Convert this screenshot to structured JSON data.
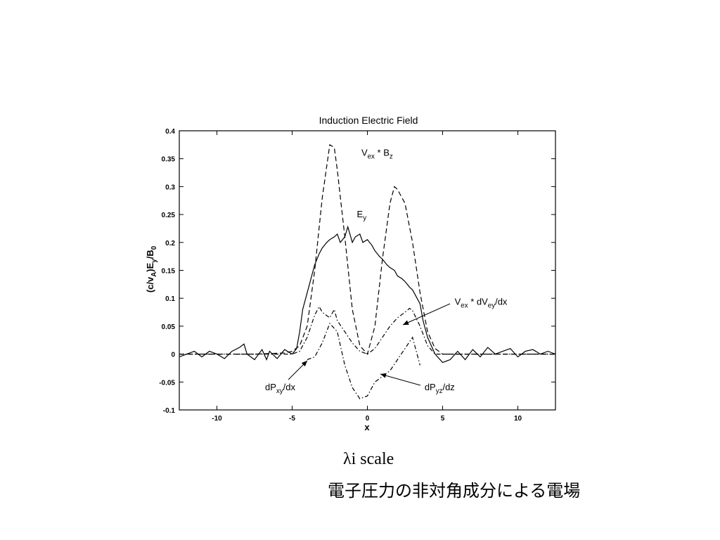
{
  "slide": {
    "caption_scale": "λi scale",
    "caption_jp": "電子圧力の非対角成分による電場"
  },
  "chart_data": {
    "type": "line",
    "title": "Induction Electric Field",
    "xlabel": "x",
    "ylabel": "(c/v_A)E_y/B_0",
    "xlim": [
      -12.5,
      12.5
    ],
    "ylim": [
      -0.1,
      0.4
    ],
    "xticks": [
      -10,
      -5,
      0,
      5,
      10
    ],
    "yticks": [
      -0.1,
      -0.05,
      0,
      0.05,
      0.1,
      0.15,
      0.2,
      0.25,
      0.3,
      0.35,
      0.4
    ],
    "grid": false,
    "series": [
      {
        "name": "E_y",
        "style": "solid",
        "x": [
          -12.5,
          -12.0,
          -11.5,
          -11.0,
          -10.5,
          -10.0,
          -9.5,
          -9.0,
          -8.5,
          -8.2,
          -8.0,
          -7.5,
          -7.0,
          -6.7,
          -6.5,
          -6.0,
          -5.5,
          -5.0,
          -4.7,
          -4.5,
          -4.3,
          -4.0,
          -3.7,
          -3.5,
          -3.2,
          -3.0,
          -2.7,
          -2.5,
          -2.2,
          -2.0,
          -1.8,
          -1.5,
          -1.3,
          -1.0,
          -0.8,
          -0.5,
          -0.3,
          0.0,
          0.3,
          0.5,
          0.8,
          1.0,
          1.3,
          1.5,
          1.8,
          2.0,
          2.3,
          2.5,
          2.8,
          3.0,
          3.2,
          3.5,
          3.7,
          4.0,
          4.3,
          4.5,
          5.0,
          5.5,
          6.0,
          6.5,
          7.0,
          7.5,
          8.0,
          8.5,
          9.0,
          9.5,
          10.0,
          10.5,
          11.0,
          11.5,
          12.0,
          12.5
        ],
        "y": [
          -0.005,
          0.0,
          0.005,
          -0.005,
          0.005,
          0.0,
          -0.008,
          0.005,
          0.012,
          0.018,
          0.0,
          -0.01,
          0.008,
          -0.01,
          0.005,
          -0.008,
          0.008,
          0.0,
          0.01,
          0.04,
          0.08,
          0.11,
          0.14,
          0.16,
          0.18,
          0.19,
          0.2,
          0.205,
          0.21,
          0.215,
          0.2,
          0.21,
          0.228,
          0.2,
          0.21,
          0.215,
          0.2,
          0.205,
          0.195,
          0.185,
          0.175,
          0.17,
          0.16,
          0.155,
          0.15,
          0.14,
          0.135,
          0.13,
          0.12,
          0.115,
          0.105,
          0.09,
          0.06,
          0.03,
          0.012,
          0.0,
          -0.015,
          -0.01,
          0.005,
          -0.01,
          0.008,
          -0.005,
          0.012,
          0.0,
          0.005,
          0.01,
          -0.005,
          0.005,
          0.008,
          0.0,
          0.005,
          0.0
        ]
      },
      {
        "name": "V_ex * B_z",
        "style": "dashed",
        "x": [
          -12.5,
          -10.0,
          -7.5,
          -5.5,
          -5.0,
          -4.5,
          -4.0,
          -3.5,
          -3.0,
          -2.5,
          -2.2,
          -2.0,
          -1.5,
          -1.0,
          -0.5,
          0.0,
          0.5,
          1.0,
          1.5,
          1.8,
          2.0,
          2.5,
          3.0,
          3.5,
          4.0,
          4.5,
          5.0,
          7.5,
          10.0,
          12.5
        ],
        "y": [
          0.0,
          0.0,
          0.0,
          0.002,
          0.005,
          0.015,
          0.05,
          0.15,
          0.28,
          0.375,
          0.37,
          0.33,
          0.21,
          0.08,
          0.015,
          0.0,
          0.05,
          0.17,
          0.27,
          0.3,
          0.295,
          0.27,
          0.2,
          0.11,
          0.04,
          0.01,
          0.0,
          0.0,
          0.0,
          0.0
        ]
      },
      {
        "name": "V_ex * dV_ey/dx",
        "style": "dashdot",
        "x": [
          -12.5,
          -10.0,
          -7.5,
          -5.0,
          -4.5,
          -4.0,
          -3.5,
          -3.2,
          -3.0,
          -2.5,
          -2.2,
          -2.0,
          -1.5,
          -1.0,
          -0.5,
          0.0,
          0.5,
          1.0,
          1.5,
          2.0,
          2.5,
          2.8,
          3.0,
          3.5,
          4.0,
          4.5,
          5.0,
          7.5,
          10.0,
          12.5
        ],
        "y": [
          0.0,
          0.0,
          0.0,
          0.0,
          0.005,
          0.03,
          0.07,
          0.085,
          0.075,
          0.065,
          0.08,
          0.06,
          0.04,
          0.02,
          0.005,
          0.0,
          0.01,
          0.03,
          0.05,
          0.065,
          0.075,
          0.082,
          0.078,
          0.05,
          0.015,
          0.0,
          0.0,
          0.0,
          0.0,
          0.0
        ]
      },
      {
        "name": "dP_xy/dx",
        "style": "dashdot",
        "x": [
          -4.0,
          -3.5,
          -3.0,
          -2.5,
          -2.0,
          -1.5,
          -1.0,
          -0.5,
          0.0,
          0.5,
          1.0,
          1.5,
          2.0,
          2.5,
          3.0,
          3.5
        ],
        "y": [
          -0.01,
          -0.005,
          0.02,
          0.055,
          0.04,
          -0.02,
          -0.06,
          -0.08,
          -0.075,
          -0.05,
          -0.04,
          -0.03,
          -0.01,
          0.01,
          0.03,
          -0.02
        ]
      }
    ],
    "annotations": [
      {
        "text": "V_ex * B_z",
        "x": -0.4,
        "y": 0.355
      },
      {
        "text": "E_y",
        "x": -0.7,
        "y": 0.245
      },
      {
        "text": "V_ex * dV_ey/dx",
        "x": 5.8,
        "y": 0.088
      },
      {
        "text": "dP_xy/dx",
        "x": -6.8,
        "y": -0.065
      },
      {
        "text": "dP_yz/dz",
        "x": 3.8,
        "y": -0.065
      }
    ]
  }
}
